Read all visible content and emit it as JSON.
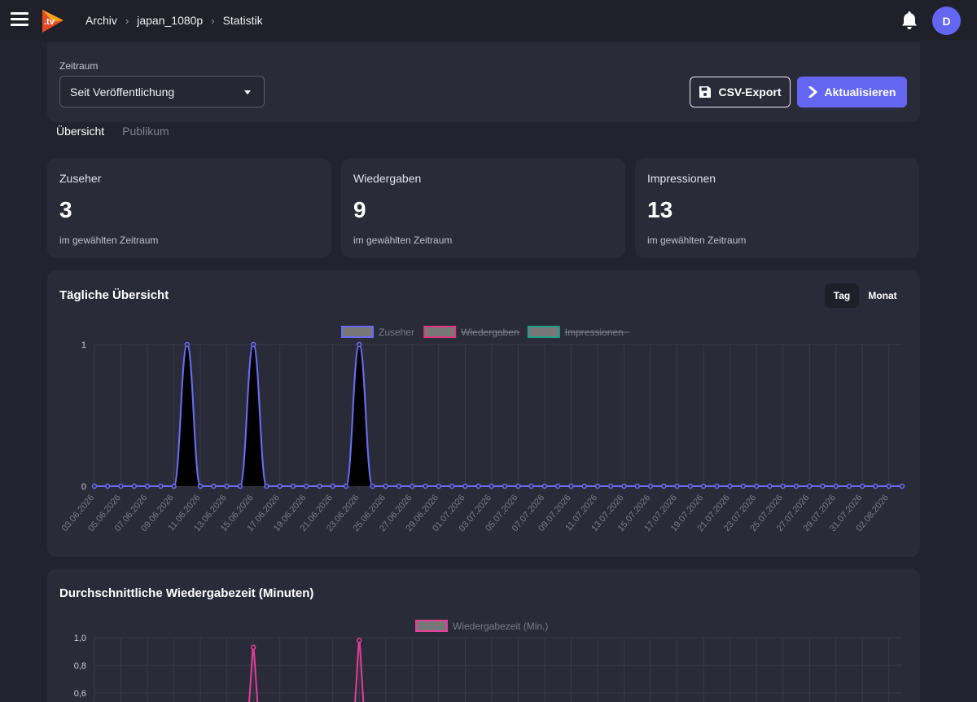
{
  "header": {
    "breadcrumb": [
      "Archiv",
      "japan_1080p",
      "Statistik"
    ],
    "avatar_letter": "D",
    "logo_text": ".tv"
  },
  "filter": {
    "label": "Zeitraum",
    "selected": "Seit Veröffentlichung",
    "csv_label": "CSV-Export",
    "refresh_label": "Aktualisieren"
  },
  "tabs": [
    {
      "label": "Übersicht",
      "active": true
    },
    {
      "label": "Publikum",
      "active": false
    }
  ],
  "stats": [
    {
      "label": "Zuseher",
      "value": "3",
      "sub": "im gewählten Zeitraum"
    },
    {
      "label": "Wiedergaben",
      "value": "9",
      "sub": "im gewählten Zeitraum"
    },
    {
      "label": "Impressionen",
      "value": "13",
      "sub": "im gewählten Zeitraum"
    }
  ],
  "daily_chart": {
    "title": "Tägliche Übersicht",
    "toggle": [
      "Tag",
      "Monat"
    ]
  },
  "avg_chart": {
    "title": "Durchschnittliche Wiedergabezeit (Minuten)"
  },
  "colors": {
    "accent": "#6366f1",
    "zuseher": "#6b6cf6",
    "wiedergaben": "#e0357f",
    "impressionen": "#1fa08d",
    "avg_line": "#e63d9a"
  },
  "chart_data": [
    {
      "type": "line",
      "title": "",
      "legend": [
        {
          "name": "Zuseher",
          "hidden": false
        },
        {
          "name": "Wiedergaben",
          "hidden": true
        },
        {
          "name": "Impressionen",
          "hidden": true
        }
      ],
      "legend_position": "top",
      "x_tick_labels": [
        "03.06.2026",
        "05.06.2026",
        "07.06.2026",
        "09.06.2026",
        "11.06.2026",
        "13.06.2026",
        "15.06.2026",
        "17.06.2026",
        "19.06.2026",
        "21.06.2026",
        "23.06.2026",
        "25.06.2026",
        "27.06.2026",
        "29.06.2026",
        "01.07.2026",
        "03.07.2026",
        "05.07.2026",
        "07.07.2026",
        "09.07.2026",
        "11.07.2026",
        "13.07.2026",
        "15.07.2026",
        "17.07.2026",
        "19.07.2026",
        "21.07.2026",
        "23.07.2026",
        "25.07.2026",
        "27.07.2026",
        "29.07.2026",
        "31.07.2026",
        "02.08.2026"
      ],
      "y_tick_labels": [
        "0",
        "1"
      ],
      "ylim": [
        0,
        1
      ],
      "grid": true,
      "x_start": "03.06.2026",
      "x_end": "03.08.2026",
      "series": [
        {
          "name": "Zuseher",
          "peaks": [
            "10.06.2026",
            "15.06.2026",
            "23.06.2026"
          ],
          "peak_value": 1,
          "baseline": 0
        }
      ]
    },
    {
      "type": "line",
      "title": "",
      "legend": [
        {
          "name": "Wiedergabezeit (Min.)",
          "hidden": false
        }
      ],
      "legend_position": "top",
      "y_tick_labels": [
        "1,0",
        "0,8",
        "0,6"
      ],
      "series": [
        {
          "name": "Wiedergabezeit (Min.)",
          "peaks": [
            {
              "x": "15.06.2026",
              "y": 0.93
            },
            {
              "x": "23.06.2026",
              "y": 0.98
            }
          ]
        }
      ]
    }
  ]
}
